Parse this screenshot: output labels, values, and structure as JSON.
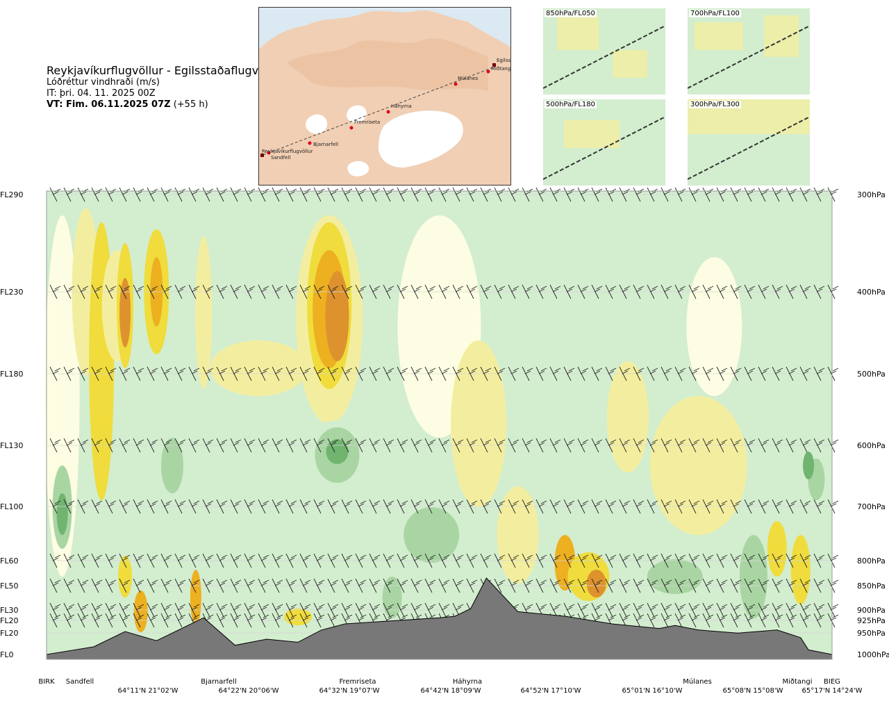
{
  "header": {
    "title": "Reykjavíkurflugvöllur - Egilsstaðaflugvöllur",
    "subtitle": "Lóðréttur vindhraði (m/s)",
    "issued": "IT: þri. 04. 11. 2025 00Z",
    "valid_bold": "VT: Fim. 06.11.2025 07Z",
    "valid_rest": " (+55 h)"
  },
  "map": {
    "waypoints": [
      "Reykjavíkurflugvöllur",
      "Sandfell",
      "Bjarnarfell",
      "Fremriseta",
      "Háhyrna",
      "Múlanes",
      "Miðtangi",
      "Egilsstaðaflugvöllur"
    ],
    "colors": {
      "sea": "#dbe9f2",
      "land": "#f1cfb4",
      "glacier": "#ffffff",
      "route_point": "#e0001a"
    }
  },
  "thumbnails": [
    {
      "label": "850hPa/FL050"
    },
    {
      "label": "700hPa/FL100"
    },
    {
      "label": "500hPa/FL180"
    },
    {
      "label": "300hPa/FL300"
    }
  ],
  "chart_data": {
    "type": "heatmap",
    "quantity": "Lóðréttur vindhraði (m/s)",
    "levels": [
      {
        "fl": "FL290",
        "hpa": "300hPa"
      },
      {
        "fl": "FL230",
        "hpa": "400hPa"
      },
      {
        "fl": "FL180",
        "hpa": "500hPa"
      },
      {
        "fl": "FL130",
        "hpa": "600hPa"
      },
      {
        "fl": "FL100",
        "hpa": "700hPa"
      },
      {
        "fl": "FL60",
        "hpa": "800hPa"
      },
      {
        "fl": "FL50",
        "hpa": "850hPa"
      },
      {
        "fl": "FL30",
        "hpa": "900hPa"
      },
      {
        "fl": "FL20",
        "hpa": "925hPa"
      },
      {
        "fl": "FL20",
        "hpa": "950hPa"
      },
      {
        "fl": "FL0",
        "hpa": "1000hPa"
      }
    ],
    "points": [
      "BIRK",
      "Sandfell",
      "Bjarnarfell",
      "Fremriseta",
      "Háhyrna",
      "Múlanes",
      "Miðtangi",
      "BIEG"
    ],
    "coordinates": [
      "64°11'N 21°02'W",
      "64°22'N 20°06'W",
      "64°32'N 19°07'W",
      "64°42'N 18°09'W",
      "64°52'N 17°10'W",
      "65°01'N 16°10'W",
      "65°08'N 15°08'W",
      "65°17'N 14°24'W"
    ],
    "route_fraction": [
      0.0,
      0.05,
      0.22,
      0.42,
      0.54,
      0.81,
      0.97,
      1.0
    ],
    "colors": {
      "updraft_weak": "#f3ee9f",
      "updraft_moderate": "#f0dc3c",
      "updraft_strong": "#edb020",
      "updraft_max": "#de922e",
      "downdraft_weak": "#d3edcf",
      "downdraft_moderate": "#a9d5a3",
      "downdraft_strong": "#70b470",
      "neutral": "#fdfde3",
      "terrain": "#787878"
    },
    "terrain_elevation_ft": [
      0,
      500,
      1500,
      900,
      2400,
      600,
      1000,
      800,
      1600,
      2000,
      2200,
      2400,
      2500,
      3000,
      5000,
      2800,
      2500,
      2000,
      1700,
      1900,
      1600,
      1400,
      1600,
      1100,
      300,
      0
    ],
    "terrain_fraction": [
      0,
      0.06,
      0.1,
      0.14,
      0.2,
      0.24,
      0.28,
      0.32,
      0.35,
      0.38,
      0.44,
      0.5,
      0.52,
      0.54,
      0.56,
      0.6,
      0.66,
      0.72,
      0.78,
      0.8,
      0.83,
      0.88,
      0.93,
      0.96,
      0.97,
      1.0
    ]
  }
}
